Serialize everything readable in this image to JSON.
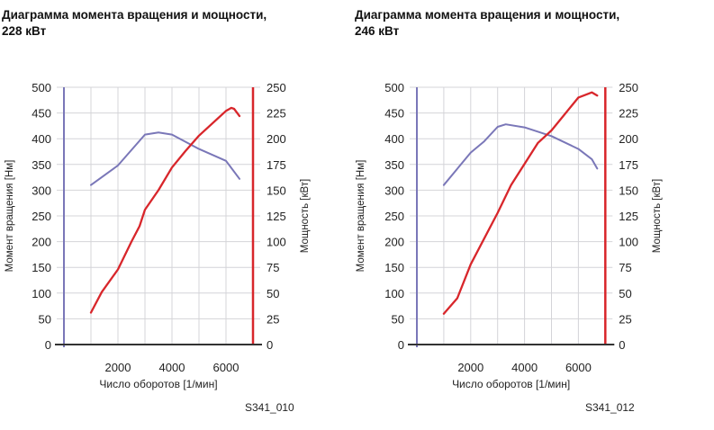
{
  "chart_data": [
    {
      "type": "line",
      "title": "Диаграмма момента вращения и мощности,",
      "title_line2": "228 кВт",
      "code": "S341_010",
      "xlabel": "Число оборотов [1/мин]",
      "ylabel": "Момент вращения [Нм]",
      "y2label": "Мощность [кВт]",
      "xticks": [
        2000,
        4000,
        6000
      ],
      "xlim": [
        0,
        7000
      ],
      "ylim": [
        0,
        500
      ],
      "y2lim": [
        0,
        250
      ],
      "yticks": [
        0,
        50,
        100,
        150,
        200,
        250,
        300,
        350,
        400,
        450,
        500
      ],
      "y2ticks": [
        0,
        25,
        50,
        75,
        100,
        125,
        150,
        175,
        200,
        225,
        250
      ],
      "series": [
        {
          "name": "Момент вращения",
          "axis": "left",
          "color": "#7a77b8",
          "x": [
            1000,
            2000,
            3000,
            3500,
            4000,
            5000,
            6000,
            6500
          ],
          "y": [
            310,
            348,
            408,
            412,
            408,
            380,
            357,
            322
          ]
        },
        {
          "name": "Мощность",
          "axis": "right",
          "color": "#d8262b",
          "x": [
            1000,
            1400,
            2000,
            2500,
            2800,
            3000,
            3500,
            4000,
            4500,
            5000,
            6000,
            6200,
            6300,
            6500
          ],
          "y": [
            31,
            51,
            73,
            100,
            115,
            131,
            150,
            172,
            188,
            203,
            227,
            230,
            229,
            222
          ]
        }
      ]
    },
    {
      "type": "line",
      "title": "Диаграмма момента вращения и мощности,",
      "title_line2": "246 кВт",
      "code": "S341_012",
      "xlabel": "Число оборотов [1/мин]",
      "ylabel": "Момент вращения [Нм]",
      "y2label": "Мощность [кВт]",
      "xticks": [
        2000,
        4000,
        6000
      ],
      "xlim": [
        0,
        7000
      ],
      "ylim": [
        0,
        500
      ],
      "y2lim": [
        0,
        250
      ],
      "yticks": [
        0,
        50,
        100,
        150,
        200,
        250,
        300,
        350,
        400,
        450,
        500
      ],
      "y2ticks": [
        0,
        25,
        50,
        75,
        100,
        125,
        150,
        175,
        200,
        225,
        250
      ],
      "series": [
        {
          "name": "Момент вращения",
          "axis": "left",
          "color": "#7a77b8",
          "x": [
            1000,
            2000,
            2500,
            3000,
            3300,
            4000,
            5000,
            6000,
            6500,
            6700
          ],
          "y": [
            310,
            373,
            395,
            423,
            428,
            422,
            405,
            380,
            360,
            342
          ]
        },
        {
          "name": "Мощность",
          "axis": "right",
          "color": "#d8262b",
          "x": [
            1000,
            1500,
            2000,
            3000,
            3500,
            4500,
            5000,
            6000,
            6500,
            6700
          ],
          "y": [
            30,
            45,
            78,
            128,
            155,
            196,
            208,
            240,
            245,
            242
          ]
        }
      ]
    }
  ]
}
